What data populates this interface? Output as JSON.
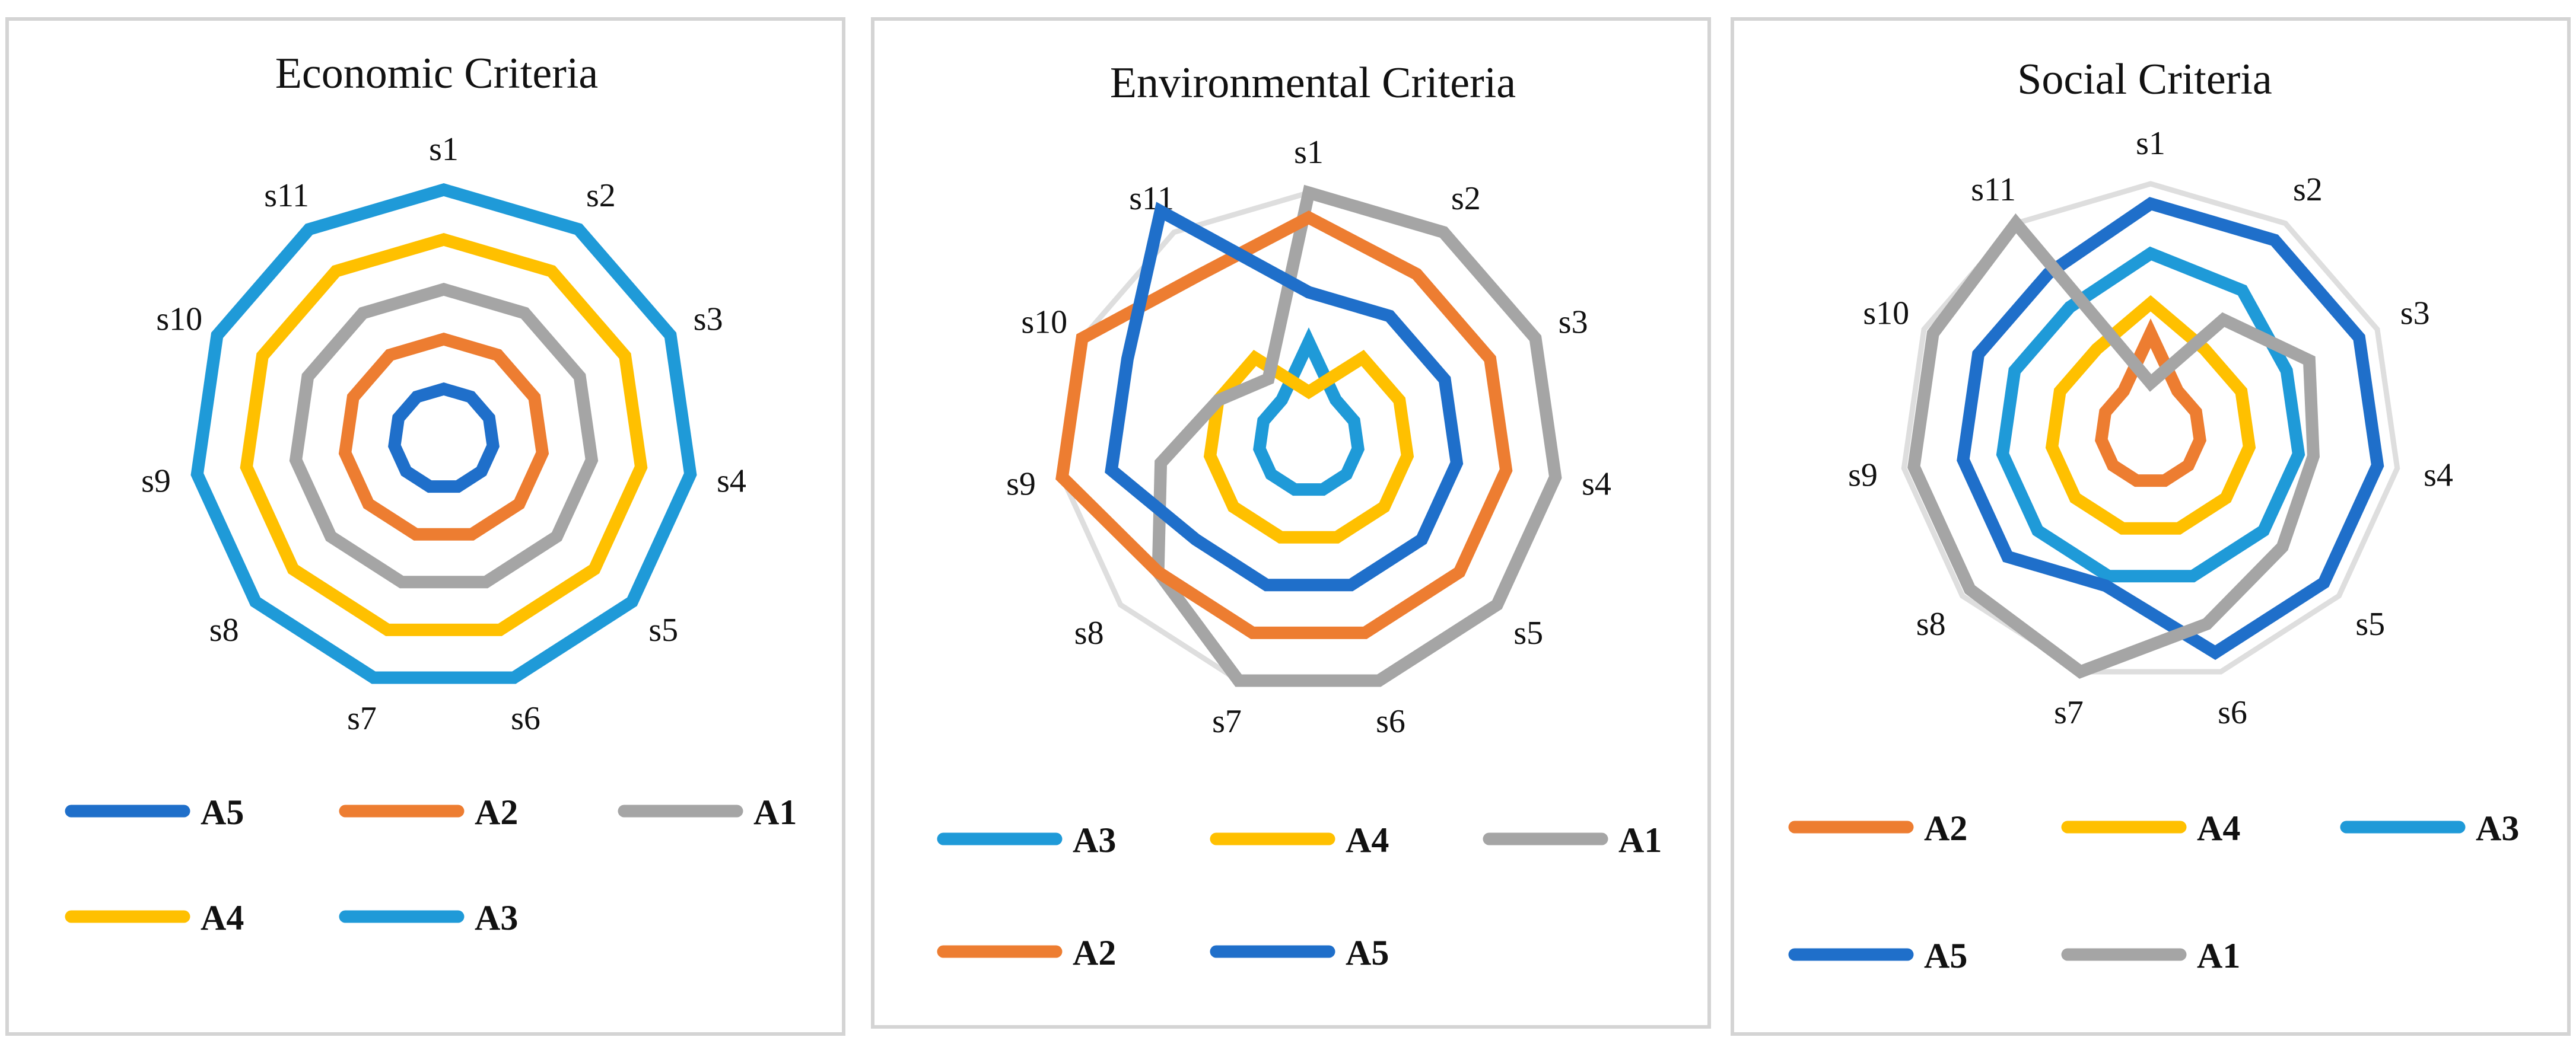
{
  "colors": {
    "A1": "#a5a5a5",
    "A2": "#ed7d31",
    "A3": "#1f9ad8",
    "A4": "#ffc000",
    "A5": "#1f6fca",
    "grid": "#dedede",
    "frame": "#d4d4d4"
  },
  "chart_data": [
    {
      "type": "radar",
      "title": "Economic Criteria",
      "axes": [
        "s1",
        "s2",
        "s3",
        "s4",
        "s5",
        "s6",
        "s7",
        "s8",
        "s9",
        "s10",
        "s11"
      ],
      "rlim": [
        0,
        5
      ],
      "grid": true,
      "legend_position": "bottom",
      "legend_order": [
        "A5",
        "A2",
        "A1",
        "A4",
        "A3"
      ],
      "series": [
        {
          "name": "A5",
          "values": [
            1,
            1,
            1,
            1,
            1,
            1,
            1,
            1,
            1,
            1,
            1
          ]
        },
        {
          "name": "A2",
          "values": [
            2,
            2,
            2,
            2,
            2,
            2,
            2,
            2,
            2,
            2,
            2
          ]
        },
        {
          "name": "A1",
          "values": [
            3,
            3,
            3,
            3,
            3,
            3,
            3,
            3,
            3,
            3,
            3
          ]
        },
        {
          "name": "A4",
          "values": [
            4,
            4,
            4,
            4,
            4,
            4,
            4,
            4,
            4,
            4,
            4
          ]
        },
        {
          "name": "A3",
          "values": [
            5,
            5,
            5,
            5,
            5,
            5,
            5,
            5,
            5,
            5,
            5
          ]
        }
      ]
    },
    {
      "type": "radar",
      "title": "Environmental Criteria",
      "axes": [
        "s1",
        "s2",
        "s3",
        "s4",
        "s5",
        "s6",
        "s7",
        "s8",
        "s9",
        "s10",
        "s11"
      ],
      "rlim": [
        0,
        5
      ],
      "grid": true,
      "legend_position": "bottom",
      "legend_order": [
        "A3",
        "A4",
        "A1",
        "A2",
        "A5"
      ],
      "series": [
        {
          "name": "A3",
          "values": [
            2,
            1,
            1,
            1,
            1,
            1,
            1,
            1,
            1,
            1,
            1
          ]
        },
        {
          "name": "A4",
          "values": [
            1,
            2,
            2,
            2,
            2,
            2,
            2,
            2,
            2,
            2,
            2
          ]
        },
        {
          "name": "A1",
          "values": [
            5,
            5,
            5,
            5,
            5,
            5,
            5,
            4,
            3,
            2,
            1.5
          ]
        },
        {
          "name": "A2",
          "values": [
            4.5,
            4,
            4,
            4,
            4,
            4,
            4,
            4,
            5,
            5,
            4
          ]
        },
        {
          "name": "A5",
          "values": [
            3,
            3,
            3,
            3,
            3,
            3,
            3,
            3,
            4,
            4,
            5.5
          ]
        }
      ]
    },
    {
      "type": "radar",
      "title": "Social Criteria",
      "axes": [
        "s1",
        "s2",
        "s3",
        "s4",
        "s5",
        "s6",
        "s7",
        "s8",
        "s9",
        "s10",
        "s11"
      ],
      "rlim": [
        0,
        5
      ],
      "grid": true,
      "legend_position": "bottom",
      "legend_order": [
        "A2",
        "A4",
        "A3",
        "A5",
        "A1"
      ],
      "series": [
        {
          "name": "A2",
          "values": [
            2,
            1,
            1,
            1,
            1,
            1,
            1,
            1,
            1,
            1,
            1
          ]
        },
        {
          "name": "A4",
          "values": [
            2.6,
            2,
            2,
            2,
            2,
            2,
            2,
            2,
            2,
            2,
            2
          ]
        },
        {
          "name": "A3",
          "values": [
            3.6,
            3.4,
            3,
            3,
            3,
            3,
            3,
            3,
            3,
            3,
            3
          ]
        },
        {
          "name": "A5",
          "values": [
            4.6,
            4.6,
            4.6,
            4.6,
            4.6,
            4.6,
            3.2,
            3.8,
            3.8,
            3.8,
            3.8
          ]
        },
        {
          "name": "A1",
          "values": [
            1,
            2.7,
            3.5,
            3.3,
            3.5,
            4,
            5,
            4.8,
            4.8,
            4.8,
            5
          ]
        }
      ]
    }
  ]
}
